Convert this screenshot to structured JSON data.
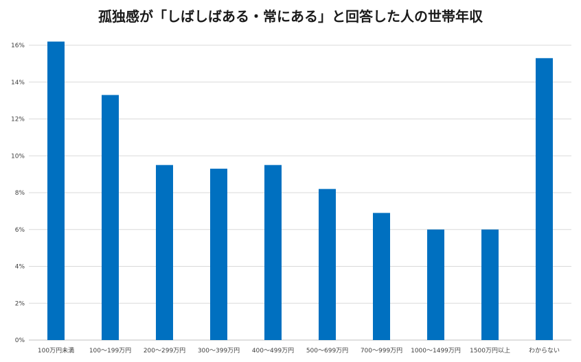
{
  "chart_data": {
    "type": "bar",
    "title": "孤独感が「しばしばある・常にある」と回答した人の世帯年収",
    "xlabel": "",
    "ylabel": "",
    "categories": [
      "100万円未満",
      "100～199万円",
      "200～299万円",
      "300～399万円",
      "400～499万円",
      "500～699万円",
      "700～999万円",
      "1000～1499万円",
      "1500万円以上",
      "わからない"
    ],
    "values": [
      16.2,
      13.3,
      9.5,
      9.3,
      9.5,
      8.2,
      6.9,
      6.0,
      6.0,
      15.3
    ],
    "ylim": [
      0,
      16
    ],
    "yticks": [
      0,
      2,
      4,
      6,
      8,
      10,
      12,
      14,
      16
    ],
    "ytick_labels": [
      "0%",
      "2%",
      "4%",
      "6%",
      "8%",
      "10%",
      "12%",
      "14%",
      "16%"
    ],
    "grid": true,
    "legend": "none",
    "bar_color": "#0070c0"
  }
}
